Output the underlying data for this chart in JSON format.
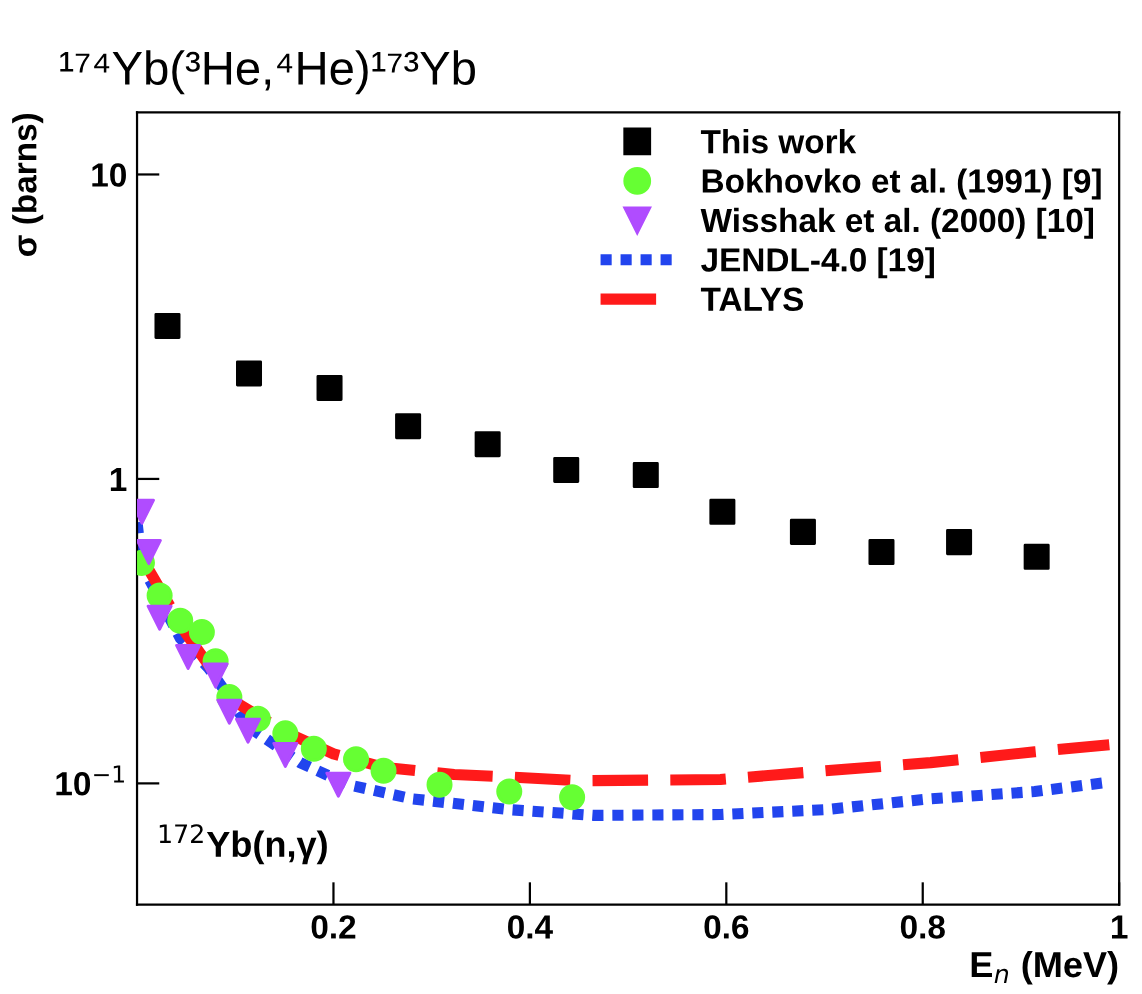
{
  "chart_data": {
    "type": "scatter",
    "title": "¹⁷⁴Yb(³He,⁴He)¹⁷³Yb",
    "xlabel": "E$_{n}$ (MeV)",
    "ylabel": "σ (barns)",
    "log": "y",
    "xlim": [
      0,
      1
    ],
    "ylim": [
      0.04,
      16
    ],
    "xticks": [
      0.2,
      0.4,
      0.6,
      0.8,
      1
    ],
    "yticks": [
      {
        "value": 0.1,
        "label": "10$^{−1}$"
      },
      1,
      10
    ],
    "legend": "top right",
    "grid": false,
    "annotations": [
      "$^{172}$Yb(n,γ)"
    ],
    "series": [
      {
        "name": "This work",
        "marker": "square",
        "color": "#000000",
        "x": [
          0.031,
          0.114,
          0.196,
          0.276,
          0.357,
          0.437,
          0.518,
          0.596,
          0.678,
          0.758,
          0.837,
          0.916
        ],
        "values": [
          3.18,
          2.22,
          1.99,
          1.49,
          1.3,
          1.07,
          1.03,
          0.78,
          0.67,
          0.575,
          0.62,
          0.555
        ]
      },
      {
        "name": "Bokhovko et al. (1991) [9]",
        "marker": "circle",
        "color": "#66ff33",
        "x": [
          0.005,
          0.023,
          0.044,
          0.066,
          0.08,
          0.094,
          0.123,
          0.151,
          0.18,
          0.223,
          0.251,
          0.308,
          0.379,
          0.443
        ],
        "values": [
          0.53,
          0.414,
          0.342,
          0.314,
          0.252,
          0.192,
          0.163,
          0.146,
          0.13,
          0.12,
          0.11,
          0.099,
          0.094,
          0.09
        ]
      },
      {
        "name": "Wisshak et al. (2000) [10]",
        "marker": "triangle",
        "color": "#b04cff",
        "x": [
          0.005,
          0.012,
          0.023,
          0.052,
          0.08,
          0.094,
          0.113,
          0.151,
          0.205
        ],
        "values": [
          0.78,
          0.575,
          0.35,
          0.26,
          0.226,
          0.172,
          0.149,
          0.124,
          0.099
        ]
      },
      {
        "name": "JENDL-4.0 [19]",
        "type": "line",
        "line_style": "dotted",
        "color": "#2244ee",
        "x": [
          0.0,
          0.005,
          0.044,
          0.073,
          0.094,
          0.113,
          0.166,
          0.215,
          0.28,
          0.379,
          0.465,
          0.594,
          0.701,
          0.808,
          0.914,
          0.99
        ],
        "values": [
          0.72,
          0.52,
          0.3,
          0.239,
          0.192,
          0.154,
          0.117,
          0.099,
          0.089,
          0.082,
          0.0785,
          0.079,
          0.082,
          0.089,
          0.094,
          0.101
        ]
      },
      {
        "name": "TALYS",
        "type": "line",
        "line_style": "dashed",
        "color": "#ff1a1a",
        "x": [
          0.005,
          0.05,
          0.1,
          0.15,
          0.2,
          0.25,
          0.323,
          0.379,
          0.451,
          0.594,
          0.701,
          0.808,
          0.914,
          0.99
        ],
        "values": [
          0.55,
          0.31,
          0.185,
          0.148,
          0.125,
          0.113,
          0.107,
          0.105,
          0.102,
          0.103,
          0.11,
          0.117,
          0.127,
          0.134
        ]
      }
    ]
  }
}
